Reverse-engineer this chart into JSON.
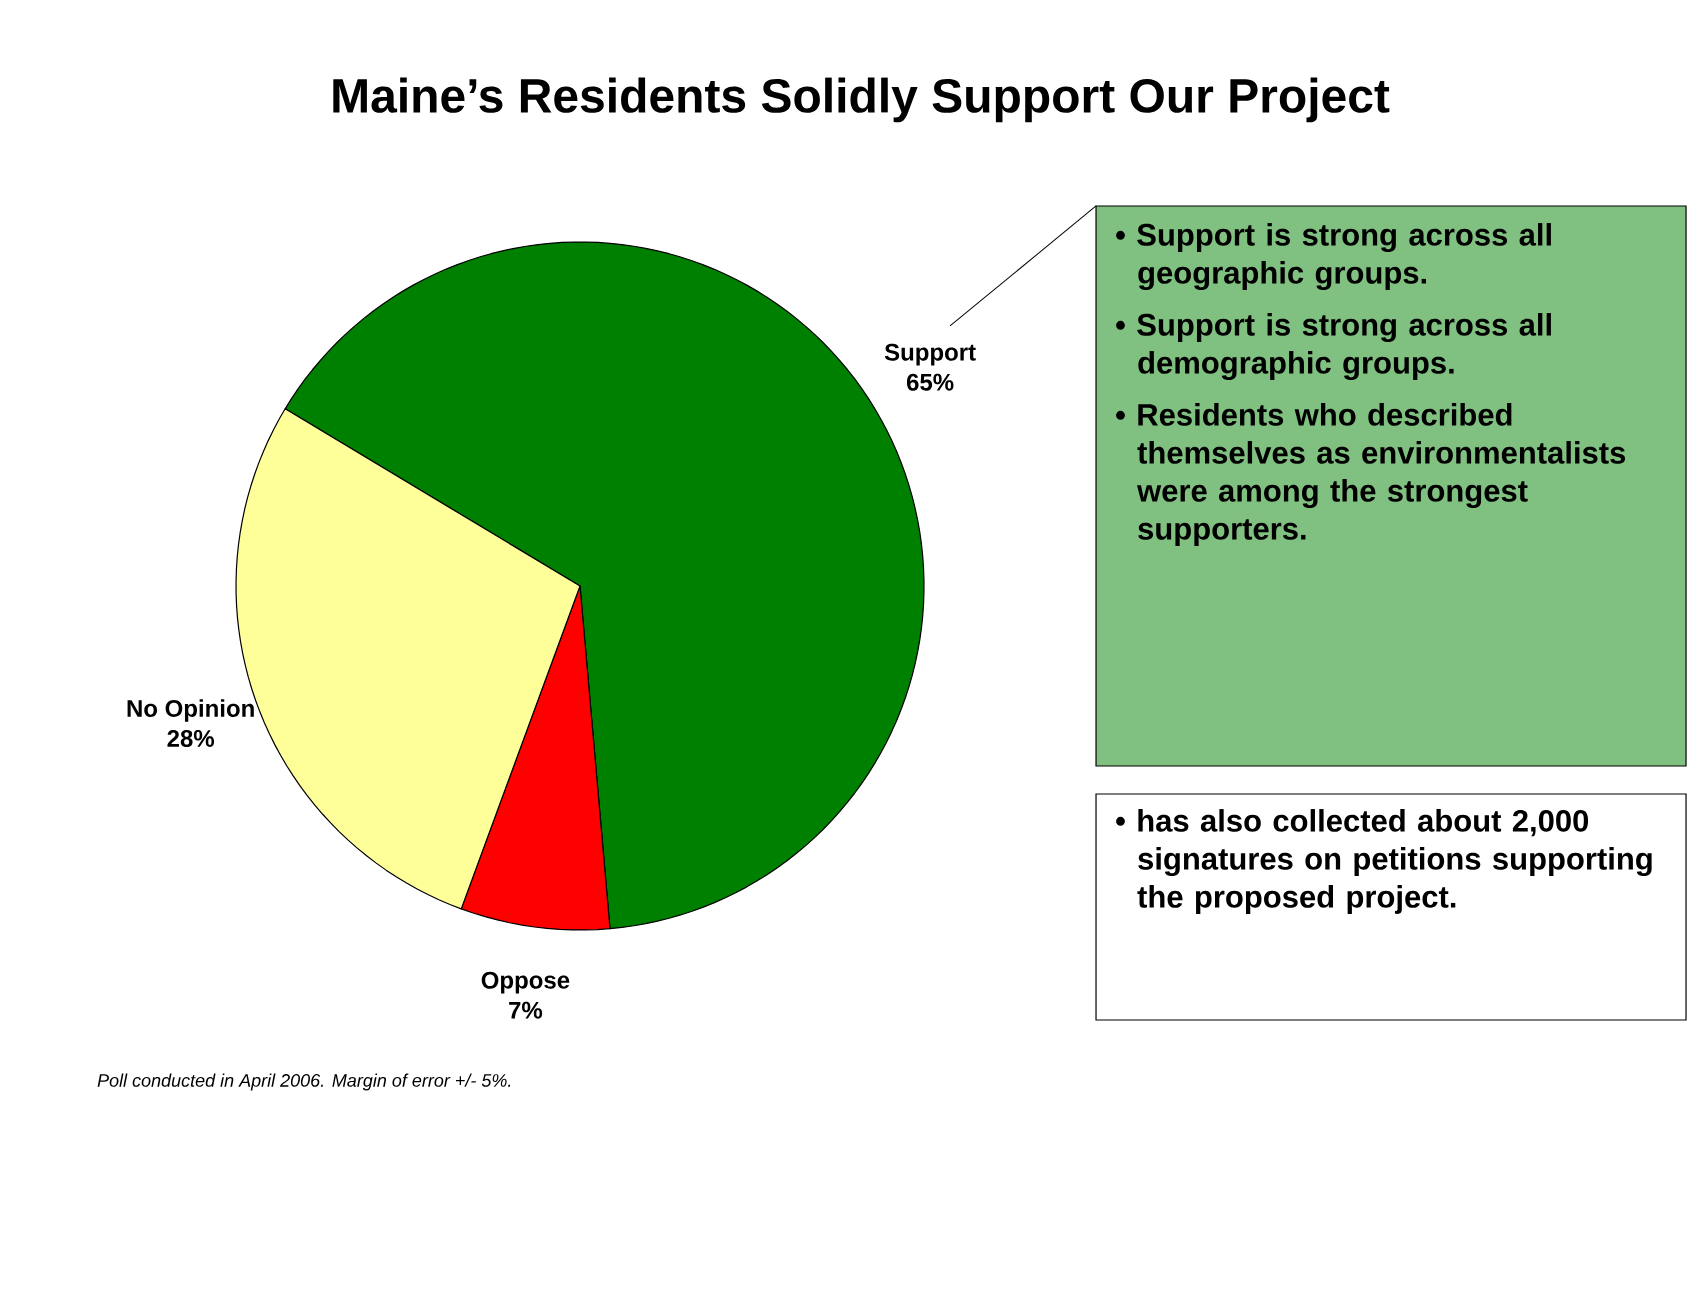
{
  "chart_data": {
    "type": "pie",
    "title": "Maine’s Residents Solidly Support Our Project",
    "categories": [
      "Support",
      "Oppose",
      "No Opinion"
    ],
    "values": [
      65,
      7,
      28
    ],
    "colors": [
      "#008000",
      "#ff0000",
      "#ffff99"
    ],
    "value_labels": [
      "65%",
      "7%",
      "28%"
    ],
    "annotations": [
      "Poll conducted in April 2006.  Margin of error +/- 5%.",
      "• Support is strong across all geographic groups.",
      "• Support is strong across all demographic groups.",
      "• Residents who described themselves as environmentalists were among the strongest supporters.",
      "• has also collected about 2,000 signatures on petitions supporting the proposed project."
    ]
  }
}
